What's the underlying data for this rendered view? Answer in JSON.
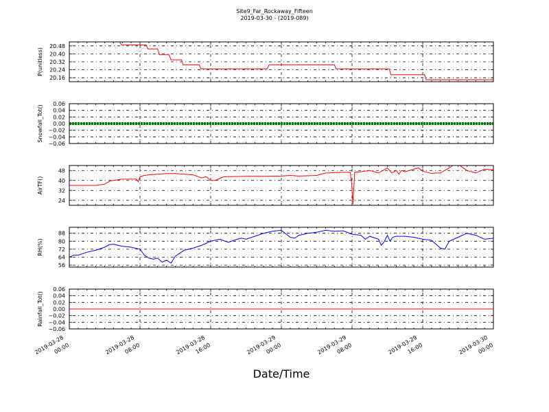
{
  "figure": {
    "title": "Site9_Far_Rockaway_Fifteen",
    "subtitle": "2019-03-30 - (2019-089)",
    "xlabel": "Date/Time"
  },
  "chart_data": [
    {
      "type": "line",
      "ylabel": "P(unitless)",
      "xlim": [
        0,
        48
      ],
      "ylim": [
        20.12,
        20.52
      ],
      "yticks": [
        20.16,
        20.24,
        20.32,
        20.4,
        20.48
      ],
      "ytick_labels": [
        "20.16",
        "20.24",
        "20.32",
        "20.40",
        "20.48"
      ],
      "grid": true,
      "series": [
        {
          "color": "#ff0000",
          "x": [
            0,
            5.7,
            5.9,
            8.7,
            8.9,
            10.0,
            10.2,
            11.3,
            11.5,
            12.7,
            12.9,
            14.7,
            14.9,
            22.4,
            22.6,
            30.0,
            30.2,
            36.2,
            36.4,
            40.2,
            40.4,
            48
          ],
          "y": [
            20.52,
            20.52,
            20.49,
            20.49,
            20.45,
            20.45,
            20.39,
            20.39,
            20.34,
            20.34,
            20.29,
            20.29,
            20.25,
            20.25,
            20.29,
            20.29,
            20.25,
            20.25,
            20.19,
            20.19,
            20.14,
            20.14
          ]
        }
      ]
    },
    {
      "type": "line",
      "ylabel": "Snowfall_Tot()",
      "xlim": [
        0,
        48
      ],
      "ylim": [
        -0.06,
        0.06
      ],
      "yticks": [
        -0.06,
        -0.04,
        -0.02,
        0.0,
        0.02,
        0.04,
        0.06
      ],
      "ytick_labels": [
        "−0.06",
        "−0.04",
        "−0.02",
        "0.00",
        "0.02",
        "0.04",
        "0.06"
      ],
      "grid": true,
      "series": [
        {
          "color": "#008000",
          "x": [
            0,
            48
          ],
          "y": [
            0,
            0
          ],
          "style": "thick-markers"
        }
      ]
    },
    {
      "type": "line",
      "ylabel": "AirTF()",
      "xlim": [
        0,
        48
      ],
      "ylim": [
        20,
        52
      ],
      "yticks": [
        24,
        32,
        40,
        48
      ],
      "ytick_labels": [
        "24",
        "32",
        "40",
        "48"
      ],
      "grid": true,
      "series": [
        {
          "color": "#ff0000",
          "x": [
            0,
            1,
            2,
            3,
            4,
            4.6,
            5,
            6,
            7,
            7.6,
            7.8,
            8,
            8.5,
            9,
            10,
            11,
            12,
            13,
            14,
            14.6,
            15,
            15.5,
            16,
            16.5,
            17,
            17.5,
            18,
            20,
            22,
            24,
            25,
            26,
            28,
            29,
            29.5,
            30,
            31,
            31.8,
            31.95,
            32.1,
            32.3,
            33,
            34,
            35,
            35.5,
            36,
            36.5,
            37,
            37.3,
            37.6,
            38,
            39,
            39.5,
            40,
            41,
            41.5,
            42,
            43,
            43.5,
            44,
            45,
            46,
            47,
            48
          ],
          "y": [
            36,
            36,
            36,
            36,
            37,
            39.5,
            40,
            41,
            41,
            41,
            39,
            43,
            44,
            44.5,
            45,
            45.5,
            45.5,
            45,
            44.5,
            43,
            42,
            43,
            40,
            40,
            41.5,
            43,
            43,
            43.3,
            43.3,
            43.5,
            44,
            43.5,
            44,
            46,
            46,
            46.3,
            46.5,
            46.5,
            38,
            21,
            46.5,
            47,
            48,
            46,
            48,
            50,
            46,
            48,
            45,
            48,
            47,
            49,
            50,
            47.5,
            45.5,
            46,
            46,
            50,
            52.5,
            53,
            48,
            46,
            49,
            48.5
          ]
        }
      ]
    },
    {
      "type": "line",
      "ylabel": "RH(%)",
      "xlim": [
        0,
        48
      ],
      "ylim": [
        54,
        94
      ],
      "yticks": [
        56,
        64,
        72,
        80,
        88
      ],
      "ytick_labels": [
        "56",
        "64",
        "72",
        "80",
        "88"
      ],
      "grid": true,
      "series": [
        {
          "color": "#0000ff",
          "x": [
            0,
            0.5,
            1,
            2,
            3,
            4,
            4.5,
            5,
            6,
            7,
            8,
            8.5,
            9,
            9.5,
            10,
            10.5,
            11,
            11.5,
            12,
            13,
            14,
            15,
            16,
            17,
            18,
            19,
            19.5,
            20,
            21,
            22,
            23,
            24,
            25,
            25.5,
            26,
            27,
            28,
            29,
            30,
            31,
            32,
            33,
            33.5,
            34,
            35,
            35.3,
            35.6,
            36,
            36.3,
            36.6,
            37,
            38,
            39,
            40,
            41,
            42,
            42.5,
            43,
            44,
            45,
            46,
            47,
            48
          ],
          "y": [
            64,
            66,
            66,
            69,
            71,
            74,
            76.5,
            77,
            75,
            74,
            72,
            66,
            63,
            62,
            63,
            59,
            61,
            58,
            65,
            71,
            73,
            76,
            80,
            82,
            79,
            82,
            83,
            82,
            85,
            88,
            90,
            91,
            84,
            83,
            86,
            88,
            89,
            91,
            90,
            90.5,
            87,
            86,
            82,
            85,
            82,
            76,
            79,
            86,
            80,
            84,
            85,
            85,
            84,
            82,
            81,
            73,
            72,
            80,
            84,
            88,
            86,
            82,
            83
          ]
        }
      ]
    },
    {
      "type": "line",
      "ylabel": "Rainfall_Tot()",
      "xlim": [
        0,
        48
      ],
      "ylim": [
        -0.06,
        0.06
      ],
      "yticks": [
        -0.06,
        -0.04,
        -0.02,
        0.0,
        0.02,
        0.04,
        0.06
      ],
      "ytick_labels": [
        "−0.06",
        "−0.04",
        "−0.02",
        "0.00",
        "0.02",
        "0.04",
        "0.06"
      ],
      "grid": true,
      "series": [
        {
          "color": "#ff0000",
          "x": [
            0,
            48
          ],
          "y": [
            0,
            0
          ]
        }
      ]
    }
  ],
  "x_axis": {
    "ticks": [
      0,
      8,
      16,
      24,
      32,
      40,
      48
    ],
    "tick_labels": [
      [
        "2019-03-28",
        "00:00"
      ],
      [
        "2019-03-28",
        "08:00"
      ],
      [
        "2019-03-28",
        "16:00"
      ],
      [
        "2019-03-29",
        "00:00"
      ],
      [
        "2019-03-29",
        "08:00"
      ],
      [
        "2019-03-29",
        "16:00"
      ],
      [
        "2019-03-30",
        "00:00"
      ]
    ]
  }
}
